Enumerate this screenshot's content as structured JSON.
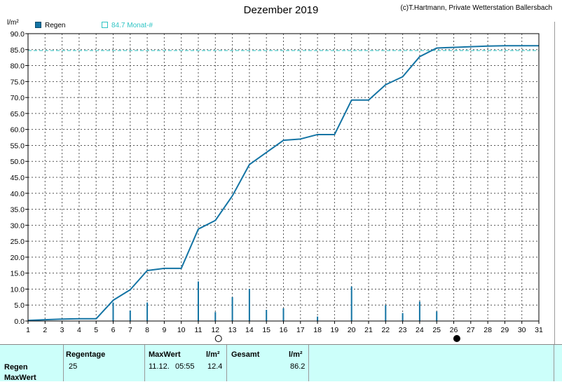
{
  "chart_data": {
    "type": "line",
    "title": "Dezember 2019",
    "copyright": "(c)T.Hartmann, Private Wetterstation Ballersbach",
    "ylabel": "l/m²",
    "ylim": [
      0,
      90
    ],
    "ytick_step": 5,
    "xlim": [
      1,
      31
    ],
    "xticks": [
      1,
      2,
      3,
      4,
      5,
      6,
      7,
      8,
      9,
      10,
      11,
      12,
      13,
      14,
      15,
      16,
      17,
      18,
      19,
      20,
      21,
      22,
      23,
      24,
      25,
      26,
      27,
      28,
      29,
      30,
      31
    ],
    "grid": true,
    "legend": [
      {
        "label": "Regen",
        "color": "#1474a4",
        "style": "filled"
      },
      {
        "label": "84.7 Monat-#",
        "color": "#2ec4c4",
        "style": "outline"
      }
    ],
    "reference_line": {
      "label": "84.7 Monat-#",
      "value": 84.7,
      "color": "#2ec4c4"
    },
    "cumulative": {
      "name": "Regen",
      "color": "#1474a4",
      "x": [
        1,
        2,
        3,
        4,
        5,
        6,
        7,
        8,
        9,
        10,
        11,
        12,
        13,
        14,
        15,
        16,
        17,
        18,
        19,
        20,
        21,
        22,
        23,
        24,
        25,
        26,
        27,
        28,
        29,
        30,
        31
      ],
      "y": [
        0.2,
        0.4,
        0.6,
        0.7,
        0.7,
        6.5,
        9.8,
        15.8,
        16.5,
        16.5,
        28.8,
        31.5,
        39.2,
        49.0,
        52.8,
        56.6,
        57.0,
        58.4,
        58.4,
        69.2,
        69.2,
        74.0,
        76.5,
        82.8,
        85.5,
        85.7,
        85.9,
        86.1,
        86.2,
        86.2,
        86.2
      ]
    },
    "daily": {
      "color": "#1474a4",
      "x": [
        6,
        7,
        8,
        11,
        12,
        13,
        14,
        15,
        16,
        18,
        20,
        22,
        23,
        24,
        25
      ],
      "y": [
        5.8,
        3.3,
        5.8,
        12.4,
        2.8,
        7.5,
        10.1,
        3.5,
        4.0,
        1.4,
        10.8,
        5.0,
        2.5,
        6.1,
        3.0
      ]
    },
    "moon_phases": [
      {
        "day": 12.1,
        "phase": "full"
      },
      {
        "day": 26.1,
        "phase": "new"
      }
    ]
  },
  "panel": {
    "row_label_regen": "Regen",
    "row_label_maxwert": "MaxWert",
    "regentage_header": "Regentage",
    "regentage_value": "25",
    "maxwert_header": "MaxWert",
    "maxwert_date": "11.12.",
    "maxwert_time": "05:55",
    "unit_header_1": "l/m²",
    "maxwert_value": "12.4",
    "gesamt_header": "Gesamt",
    "unit_header_2": "l/m²",
    "gesamt_value": "86.2"
  }
}
